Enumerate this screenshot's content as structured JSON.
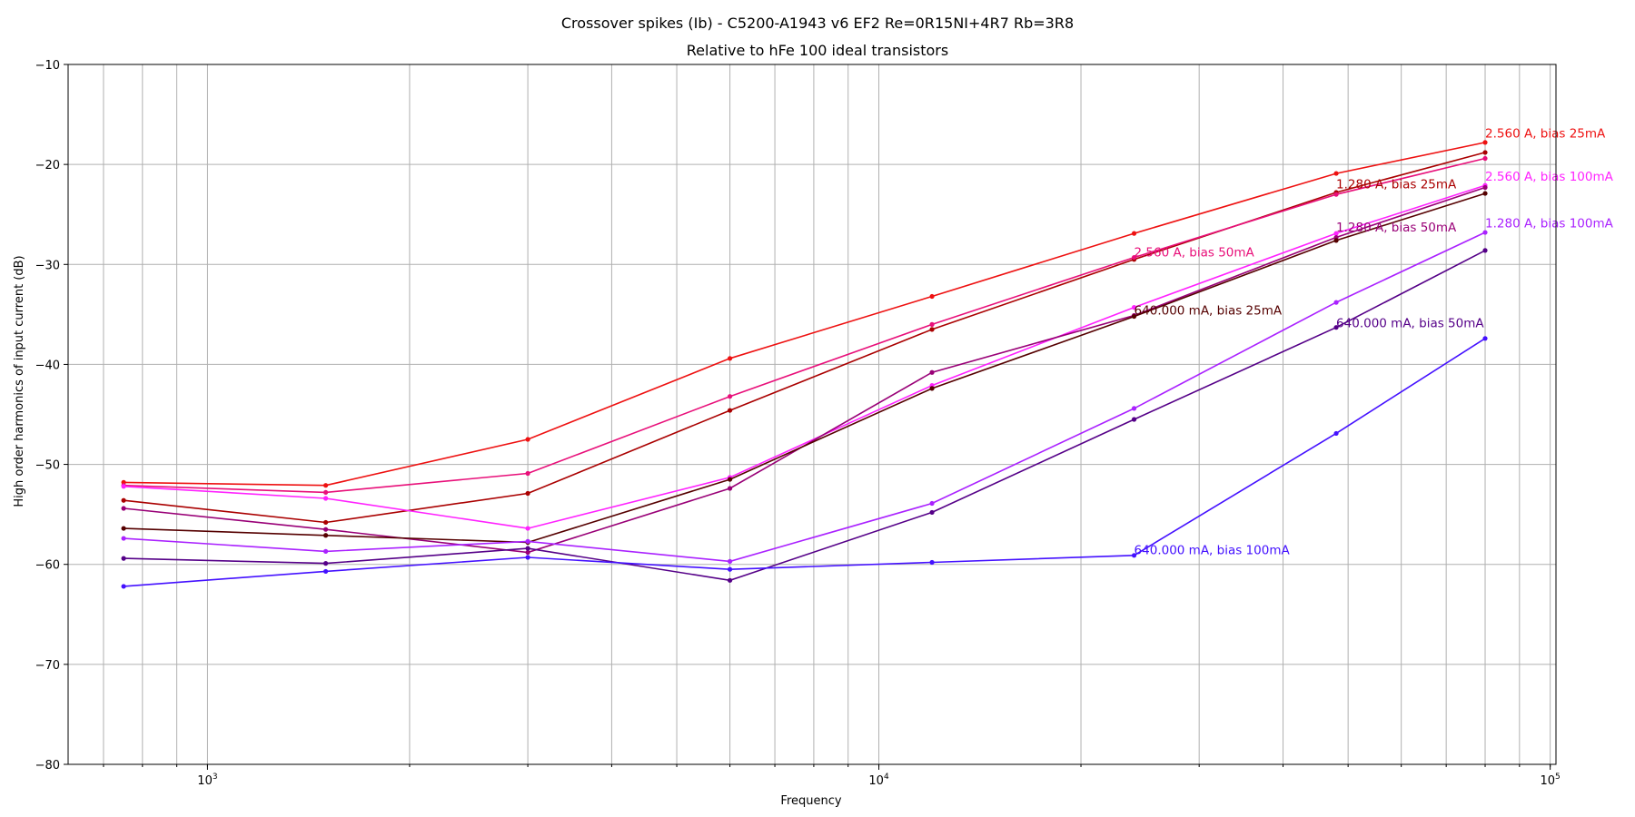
{
  "chart_data": {
    "type": "line",
    "title": "Crossover spikes (Ib) - C5200-A1943 v6 EF2 Re=0R15NI+4R7 Rb=3R8",
    "subtitle": "Relative to hFe 100 ideal transistors",
    "xlabel": "Frequency",
    "ylabel": "High order harmonics of input current (dB)",
    "xscale": "log",
    "xlim": [
      620,
      102000
    ],
    "ylim": [
      -80,
      -10
    ],
    "grid": true,
    "x_ticks": [
      {
        "value": 1000,
        "base": "10",
        "exp": "3"
      },
      {
        "value": 10000,
        "base": "10",
        "exp": "4"
      },
      {
        "value": 100000,
        "base": "10",
        "exp": "5"
      }
    ],
    "y_ticks": [
      {
        "value": -10,
        "label": "−10"
      },
      {
        "value": -20,
        "label": "−20"
      },
      {
        "value": -30,
        "label": "−30"
      },
      {
        "value": -40,
        "label": "−40"
      },
      {
        "value": -50,
        "label": "−50"
      },
      {
        "value": -60,
        "label": "−60"
      },
      {
        "value": -70,
        "label": "−70"
      },
      {
        "value": -80,
        "label": "−80"
      }
    ],
    "x": [
      750,
      1500,
      3000,
      6000,
      12000,
      24000,
      48000,
      80000
    ],
    "series": [
      {
        "name": "2.560 A, bias 25mA",
        "color": "#ee1111",
        "label_x": 80000,
        "label_y": -17.3,
        "values": [
          -51.8,
          -52.1,
          -47.5,
          -39.4,
          -33.2,
          -26.9,
          -20.9,
          -17.8
        ]
      },
      {
        "name": "1.280 A, bias 25mA",
        "color": "#aa0000",
        "label_x": 48000,
        "label_y": -22.4,
        "values": [
          -53.6,
          -55.8,
          -52.9,
          -44.6,
          -36.5,
          -29.5,
          -22.8,
          -18.8
        ]
      },
      {
        "name": "2.560 A, bias 50mA",
        "color": "#e8107a",
        "label_x": 24000,
        "label_y": -29.2,
        "values": [
          -52.1,
          -52.8,
          -50.9,
          -43.2,
          -36.0,
          -29.3,
          -23.0,
          -19.4
        ]
      },
      {
        "name": "2.560 A, bias 100mA",
        "color": "#ff22ff",
        "label_x": 80000,
        "label_y": -21.6,
        "values": [
          -52.2,
          -53.4,
          -56.4,
          -51.3,
          -42.1,
          -34.3,
          -26.9,
          -22.1
        ]
      },
      {
        "name": "1.280 A, bias 50mA",
        "color": "#990077",
        "label_x": 48000,
        "label_y": -26.7,
        "values": [
          -54.4,
          -56.5,
          -58.8,
          -52.4,
          -40.8,
          -35.1,
          -27.3,
          -22.3
        ]
      },
      {
        "name": "640.000 mA, bias 25mA",
        "color": "#550000",
        "label_x": 24000,
        "label_y": -35.0,
        "values": [
          -56.4,
          -57.1,
          -57.8,
          -51.5,
          -42.4,
          -35.2,
          -27.6,
          -22.9
        ]
      },
      {
        "name": "1.280 A, bias 100mA",
        "color": "#aa22ff",
        "label_x": 80000,
        "label_y": -26.3,
        "values": [
          -57.4,
          -58.7,
          -57.7,
          -59.7,
          -53.9,
          -44.4,
          -33.8,
          -26.8
        ]
      },
      {
        "name": "640.000 mA, bias 50mA",
        "color": "#550088",
        "label_x": 48000,
        "label_y": -36.3,
        "values": [
          -59.4,
          -59.9,
          -58.4,
          -61.6,
          -54.8,
          -45.5,
          -36.3,
          -28.6
        ]
      },
      {
        "name": "640.000 mA, bias 100mA",
        "color": "#4411ff",
        "label_x": 24000,
        "label_y": -59.0,
        "values": [
          -62.2,
          -60.7,
          -59.3,
          -60.5,
          -59.8,
          -59.1,
          -46.9,
          -37.4
        ]
      }
    ]
  }
}
